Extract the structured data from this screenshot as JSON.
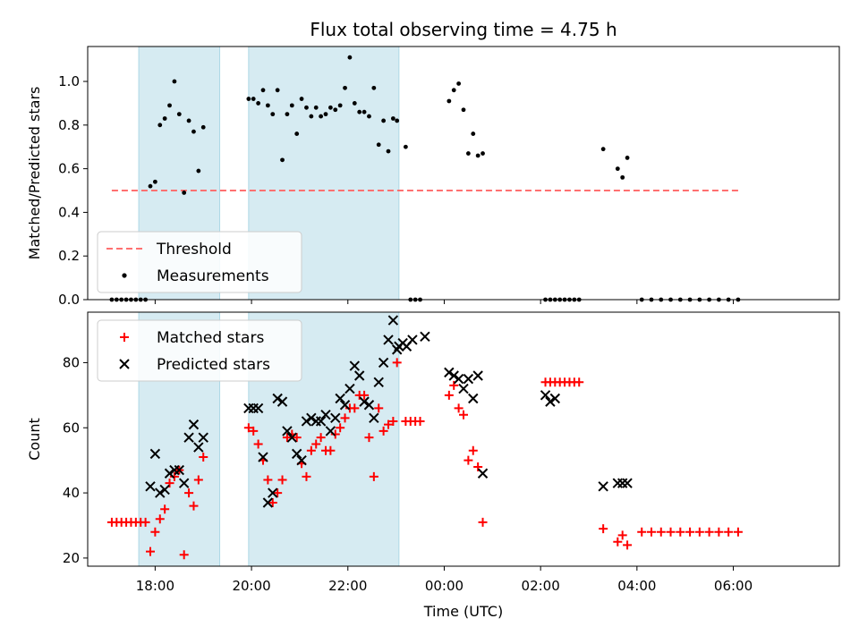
{
  "chart_data": [
    {
      "type": "scatter",
      "title": "Flux total observing time = 4.75 h",
      "xlabel": "",
      "ylabel": "Matched/Predicted stars",
      "xlim": [
        -1.45,
        6.35
      ],
      "ylim": [
        0,
        1.16
      ],
      "yticks": [
        0.0,
        0.2,
        0.4,
        0.6,
        0.8,
        1.0
      ],
      "ytick_labels": [
        "0.0",
        "0.2",
        "0.4",
        "0.6",
        "0.8",
        "1.0"
      ],
      "x_unit_note": "hours relative to 00:00 UTC",
      "shaded_spans": [
        [
          -0.92,
          -0.08
        ],
        [
          0.22,
          1.78
        ]
      ],
      "threshold": {
        "name": "Threshold",
        "y": 0.5,
        "x_range": [
          -1.2,
          5.3
        ],
        "color": "#ff7070"
      },
      "series": [
        {
          "name": "Measurements",
          "color": "#000000",
          "points": [
            [
              -1.2,
              0
            ],
            [
              -1.15,
              0
            ],
            [
              -1.1,
              0
            ],
            [
              -1.05,
              0
            ],
            [
              -1.0,
              0
            ],
            [
              -0.95,
              0
            ],
            [
              -0.9,
              0
            ],
            [
              -0.85,
              0
            ],
            [
              -0.8,
              0.52
            ],
            [
              -0.75,
              0.54
            ],
            [
              -0.7,
              0.8
            ],
            [
              -0.65,
              0.83
            ],
            [
              -0.6,
              0.89
            ],
            [
              -0.55,
              1.0
            ],
            [
              -0.5,
              0.85
            ],
            [
              -0.45,
              0.49
            ],
            [
              -0.4,
              0.82
            ],
            [
              -0.35,
              0.77
            ],
            [
              -0.3,
              0.59
            ],
            [
              -0.25,
              0.79
            ],
            [
              0.22,
              0.92
            ],
            [
              0.27,
              0.92
            ],
            [
              0.32,
              0.9
            ],
            [
              0.37,
              0.96
            ],
            [
              0.42,
              0.89
            ],
            [
              0.47,
              0.85
            ],
            [
              0.52,
              0.96
            ],
            [
              0.57,
              0.64
            ],
            [
              0.62,
              0.85
            ],
            [
              0.67,
              0.89
            ],
            [
              0.72,
              0.76
            ],
            [
              0.77,
              0.92
            ],
            [
              0.82,
              0.88
            ],
            [
              0.87,
              0.84
            ],
            [
              0.92,
              0.88
            ],
            [
              0.97,
              0.84
            ],
            [
              1.02,
              0.85
            ],
            [
              1.07,
              0.88
            ],
            [
              1.12,
              0.87
            ],
            [
              1.17,
              0.89
            ],
            [
              1.22,
              0.97
            ],
            [
              1.27,
              1.11
            ],
            [
              1.32,
              0.9
            ],
            [
              1.37,
              0.86
            ],
            [
              1.42,
              0.86
            ],
            [
              1.47,
              0.84
            ],
            [
              1.52,
              0.97
            ],
            [
              1.57,
              0.71
            ],
            [
              1.62,
              0.82
            ],
            [
              1.67,
              0.68
            ],
            [
              1.72,
              0.83
            ],
            [
              1.76,
              0.82
            ],
            [
              1.85,
              0.7
            ],
            [
              1.9,
              0
            ],
            [
              1.95,
              0
            ],
            [
              2.0,
              0
            ],
            [
              2.3,
              0.91
            ],
            [
              2.35,
              0.96
            ],
            [
              2.4,
              0.99
            ],
            [
              2.45,
              0.87
            ],
            [
              2.5,
              0.67
            ],
            [
              2.55,
              0.76
            ],
            [
              2.6,
              0.66
            ],
            [
              2.65,
              0.67
            ],
            [
              3.3,
              0
            ],
            [
              3.35,
              0
            ],
            [
              3.4,
              0
            ],
            [
              3.45,
              0
            ],
            [
              3.5,
              0
            ],
            [
              3.55,
              0
            ],
            [
              3.6,
              0
            ],
            [
              3.65,
              0
            ],
            [
              3.9,
              0.69
            ],
            [
              4.05,
              0.6
            ],
            [
              4.1,
              0.56
            ],
            [
              4.15,
              0.65
            ],
            [
              4.3,
              0
            ],
            [
              4.4,
              0
            ],
            [
              4.5,
              0
            ],
            [
              4.6,
              0
            ],
            [
              4.7,
              0
            ],
            [
              4.8,
              0
            ],
            [
              4.9,
              0
            ],
            [
              5.0,
              0
            ],
            [
              5.1,
              0
            ],
            [
              5.2,
              0
            ],
            [
              5.3,
              0
            ]
          ]
        }
      ],
      "legend": {
        "position": "lower-left",
        "entries": [
          "Threshold",
          "Measurements"
        ]
      }
    },
    {
      "type": "scatter",
      "title": "",
      "xlabel": "Time (UTC)",
      "ylabel": "Count",
      "xlim": [
        -1.45,
        6.35
      ],
      "ylim": [
        17.5,
        95.5
      ],
      "yticks": [
        20,
        40,
        60,
        80
      ],
      "ytick_labels": [
        "20",
        "40",
        "60",
        "80"
      ],
      "xticks": [
        -0.75,
        0.25,
        1.25,
        2.25,
        3.25,
        4.25,
        5.25
      ],
      "xtick_labels": [
        "18:00",
        "20:00",
        "22:00",
        "00:00",
        "02:00",
        "04:00",
        "06:00"
      ],
      "shaded_spans": [
        [
          -0.92,
          -0.08
        ],
        [
          0.22,
          1.78
        ]
      ],
      "series": [
        {
          "name": "Matched stars",
          "marker": "plus",
          "color": "#ff0000",
          "points": [
            [
              -1.2,
              31
            ],
            [
              -1.15,
              31
            ],
            [
              -1.1,
              31
            ],
            [
              -1.05,
              31
            ],
            [
              -1.0,
              31
            ],
            [
              -0.95,
              31
            ],
            [
              -0.9,
              31
            ],
            [
              -0.85,
              31
            ],
            [
              -0.8,
              22
            ],
            [
              -0.75,
              28
            ],
            [
              -0.7,
              32
            ],
            [
              -0.65,
              35
            ],
            [
              -0.6,
              43
            ],
            [
              -0.55,
              45
            ],
            [
              -0.5,
              47
            ],
            [
              -0.45,
              21
            ],
            [
              -0.4,
              40
            ],
            [
              -0.35,
              36
            ],
            [
              -0.3,
              44
            ],
            [
              -0.25,
              51
            ],
            [
              0.22,
              60
            ],
            [
              0.27,
              59
            ],
            [
              0.32,
              55
            ],
            [
              0.37,
              50
            ],
            [
              0.42,
              44
            ],
            [
              0.47,
              37
            ],
            [
              0.52,
              40
            ],
            [
              0.57,
              44
            ],
            [
              0.62,
              57
            ],
            [
              0.67,
              58
            ],
            [
              0.72,
              57
            ],
            [
              0.77,
              49
            ],
            [
              0.82,
              45
            ],
            [
              0.87,
              53
            ],
            [
              0.92,
              55
            ],
            [
              0.97,
              57
            ],
            [
              1.02,
              53
            ],
            [
              1.07,
              53
            ],
            [
              1.12,
              58
            ],
            [
              1.17,
              60
            ],
            [
              1.22,
              63
            ],
            [
              1.27,
              66
            ],
            [
              1.32,
              66
            ],
            [
              1.37,
              70
            ],
            [
              1.42,
              70
            ],
            [
              1.47,
              57
            ],
            [
              1.52,
              45
            ],
            [
              1.57,
              66
            ],
            [
              1.62,
              59
            ],
            [
              1.67,
              61
            ],
            [
              1.72,
              62
            ],
            [
              1.76,
              80
            ],
            [
              1.85,
              62
            ],
            [
              1.9,
              62
            ],
            [
              1.95,
              62
            ],
            [
              2.0,
              62
            ],
            [
              2.3,
              70
            ],
            [
              2.35,
              73
            ],
            [
              2.4,
              66
            ],
            [
              2.45,
              64
            ],
            [
              2.5,
              50
            ],
            [
              2.55,
              53
            ],
            [
              2.6,
              48
            ],
            [
              2.65,
              31
            ],
            [
              3.3,
              74
            ],
            [
              3.35,
              74
            ],
            [
              3.4,
              74
            ],
            [
              3.45,
              74
            ],
            [
              3.5,
              74
            ],
            [
              3.55,
              74
            ],
            [
              3.6,
              74
            ],
            [
              3.65,
              74
            ],
            [
              3.9,
              29
            ],
            [
              4.05,
              25
            ],
            [
              4.1,
              27
            ],
            [
              4.15,
              24
            ],
            [
              4.3,
              28
            ],
            [
              4.4,
              28
            ],
            [
              4.5,
              28
            ],
            [
              4.6,
              28
            ],
            [
              4.7,
              28
            ],
            [
              4.8,
              28
            ],
            [
              4.9,
              28
            ],
            [
              5.0,
              28
            ],
            [
              5.1,
              28
            ],
            [
              5.2,
              28
            ],
            [
              5.3,
              28
            ]
          ]
        },
        {
          "name": "Predicted stars",
          "marker": "x",
          "color": "#000000",
          "points": [
            [
              -0.8,
              42
            ],
            [
              -0.75,
              52
            ],
            [
              -0.7,
              40
            ],
            [
              -0.65,
              41
            ],
            [
              -0.6,
              46
            ],
            [
              -0.55,
              47
            ],
            [
              -0.5,
              47
            ],
            [
              -0.45,
              43
            ],
            [
              -0.4,
              57
            ],
            [
              -0.35,
              61
            ],
            [
              -0.3,
              54
            ],
            [
              -0.25,
              57
            ],
            [
              0.22,
              66
            ],
            [
              0.27,
              66
            ],
            [
              0.32,
              66
            ],
            [
              0.37,
              51
            ],
            [
              0.42,
              37
            ],
            [
              0.47,
              40
            ],
            [
              0.52,
              69
            ],
            [
              0.57,
              68
            ],
            [
              0.62,
              59
            ],
            [
              0.67,
              57
            ],
            [
              0.72,
              52
            ],
            [
              0.77,
              50
            ],
            [
              0.82,
              62
            ],
            [
              0.87,
              63
            ],
            [
              0.92,
              62
            ],
            [
              0.97,
              62
            ],
            [
              1.02,
              64
            ],
            [
              1.07,
              59
            ],
            [
              1.12,
              63
            ],
            [
              1.17,
              69
            ],
            [
              1.22,
              67
            ],
            [
              1.27,
              72
            ],
            [
              1.32,
              79
            ],
            [
              1.37,
              76
            ],
            [
              1.42,
              68
            ],
            [
              1.47,
              67
            ],
            [
              1.52,
              63
            ],
            [
              1.57,
              74
            ],
            [
              1.62,
              80
            ],
            [
              1.67,
              87
            ],
            [
              1.72,
              93
            ],
            [
              1.76,
              84
            ],
            [
              1.78,
              85
            ],
            [
              1.82,
              86
            ],
            [
              1.86,
              85
            ],
            [
              1.92,
              87
            ],
            [
              2.05,
              88
            ],
            [
              2.3,
              77
            ],
            [
              2.35,
              76
            ],
            [
              2.4,
              75
            ],
            [
              2.45,
              72
            ],
            [
              2.5,
              75
            ],
            [
              2.55,
              69
            ],
            [
              2.6,
              76
            ],
            [
              2.65,
              46
            ],
            [
              3.3,
              70
            ],
            [
              3.35,
              68
            ],
            [
              3.4,
              69
            ],
            [
              3.9,
              42
            ],
            [
              4.05,
              43
            ],
            [
              4.1,
              43
            ],
            [
              4.15,
              43
            ]
          ]
        }
      ],
      "legend": {
        "position": "upper-left",
        "entries": [
          "Matched stars",
          "Predicted stars"
        ]
      }
    }
  ]
}
